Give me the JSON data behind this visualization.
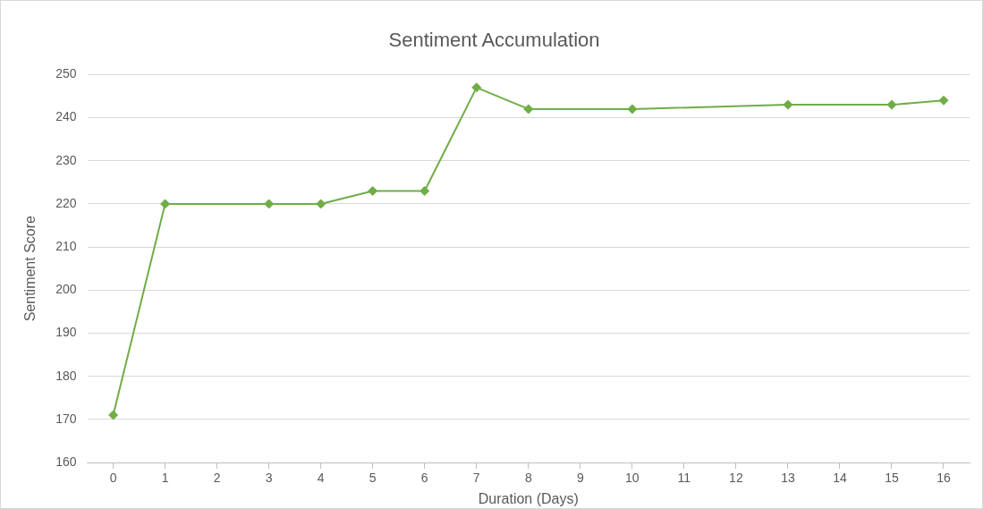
{
  "chart_data": {
    "type": "line",
    "title": "Sentiment Accumulation",
    "xlabel": "Duration (Days)",
    "ylabel": "Sentiment Score",
    "x": [
      0,
      1,
      3,
      4,
      5,
      6,
      7,
      8,
      10,
      13,
      15,
      16
    ],
    "series": [
      {
        "color": "#70ad47",
        "values": [
          171,
          220,
          220,
          220,
          223,
          223,
          247,
          242,
          242,
          243,
          243,
          244
        ]
      }
    ],
    "xlim": [
      -0.5,
      16.5
    ],
    "xticks": [
      0,
      1,
      2,
      3,
      4,
      5,
      6,
      7,
      8,
      9,
      10,
      11,
      12,
      13,
      14,
      15,
      16
    ],
    "ylim": [
      160,
      250
    ],
    "yticks": [
      160,
      170,
      180,
      190,
      200,
      210,
      220,
      230,
      240,
      250
    ],
    "grid": "y",
    "legend": false,
    "marker": "diamond",
    "line_style": "solid"
  }
}
